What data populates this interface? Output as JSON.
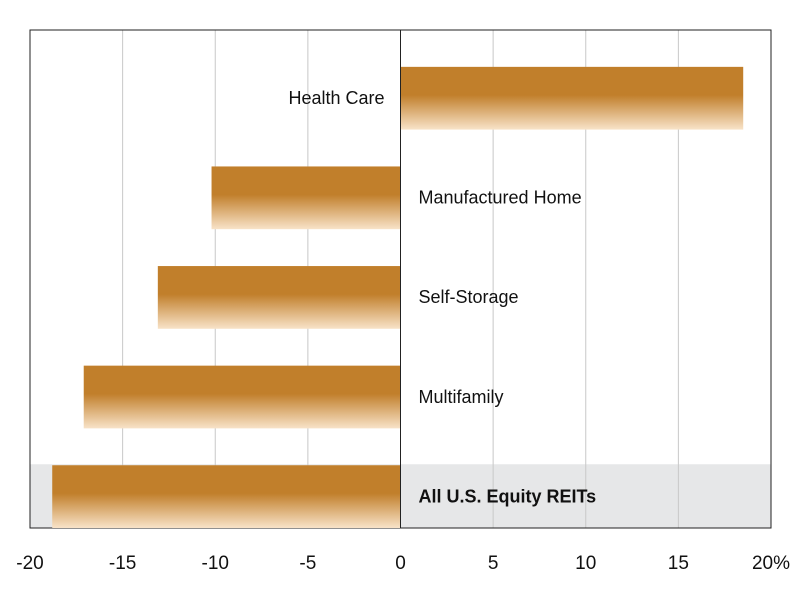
{
  "chart_data": {
    "type": "bar",
    "orientation": "horizontal",
    "categories": [
      "Health Care",
      "Manufactured Home",
      "Self-Storage",
      "Multifamily",
      "All U.S. Equity REITs"
    ],
    "values": [
      18.5,
      -10.2,
      -13.1,
      -17.1,
      -18.8
    ],
    "color": "#c17f2b",
    "highlight": 4,
    "xlim": [
      -20,
      20
    ],
    "xticks": [
      -20,
      -15,
      -10,
      -5,
      0,
      5,
      10,
      15,
      {
        "value": 20,
        "label": "20%"
      }
    ],
    "grid": true
  }
}
